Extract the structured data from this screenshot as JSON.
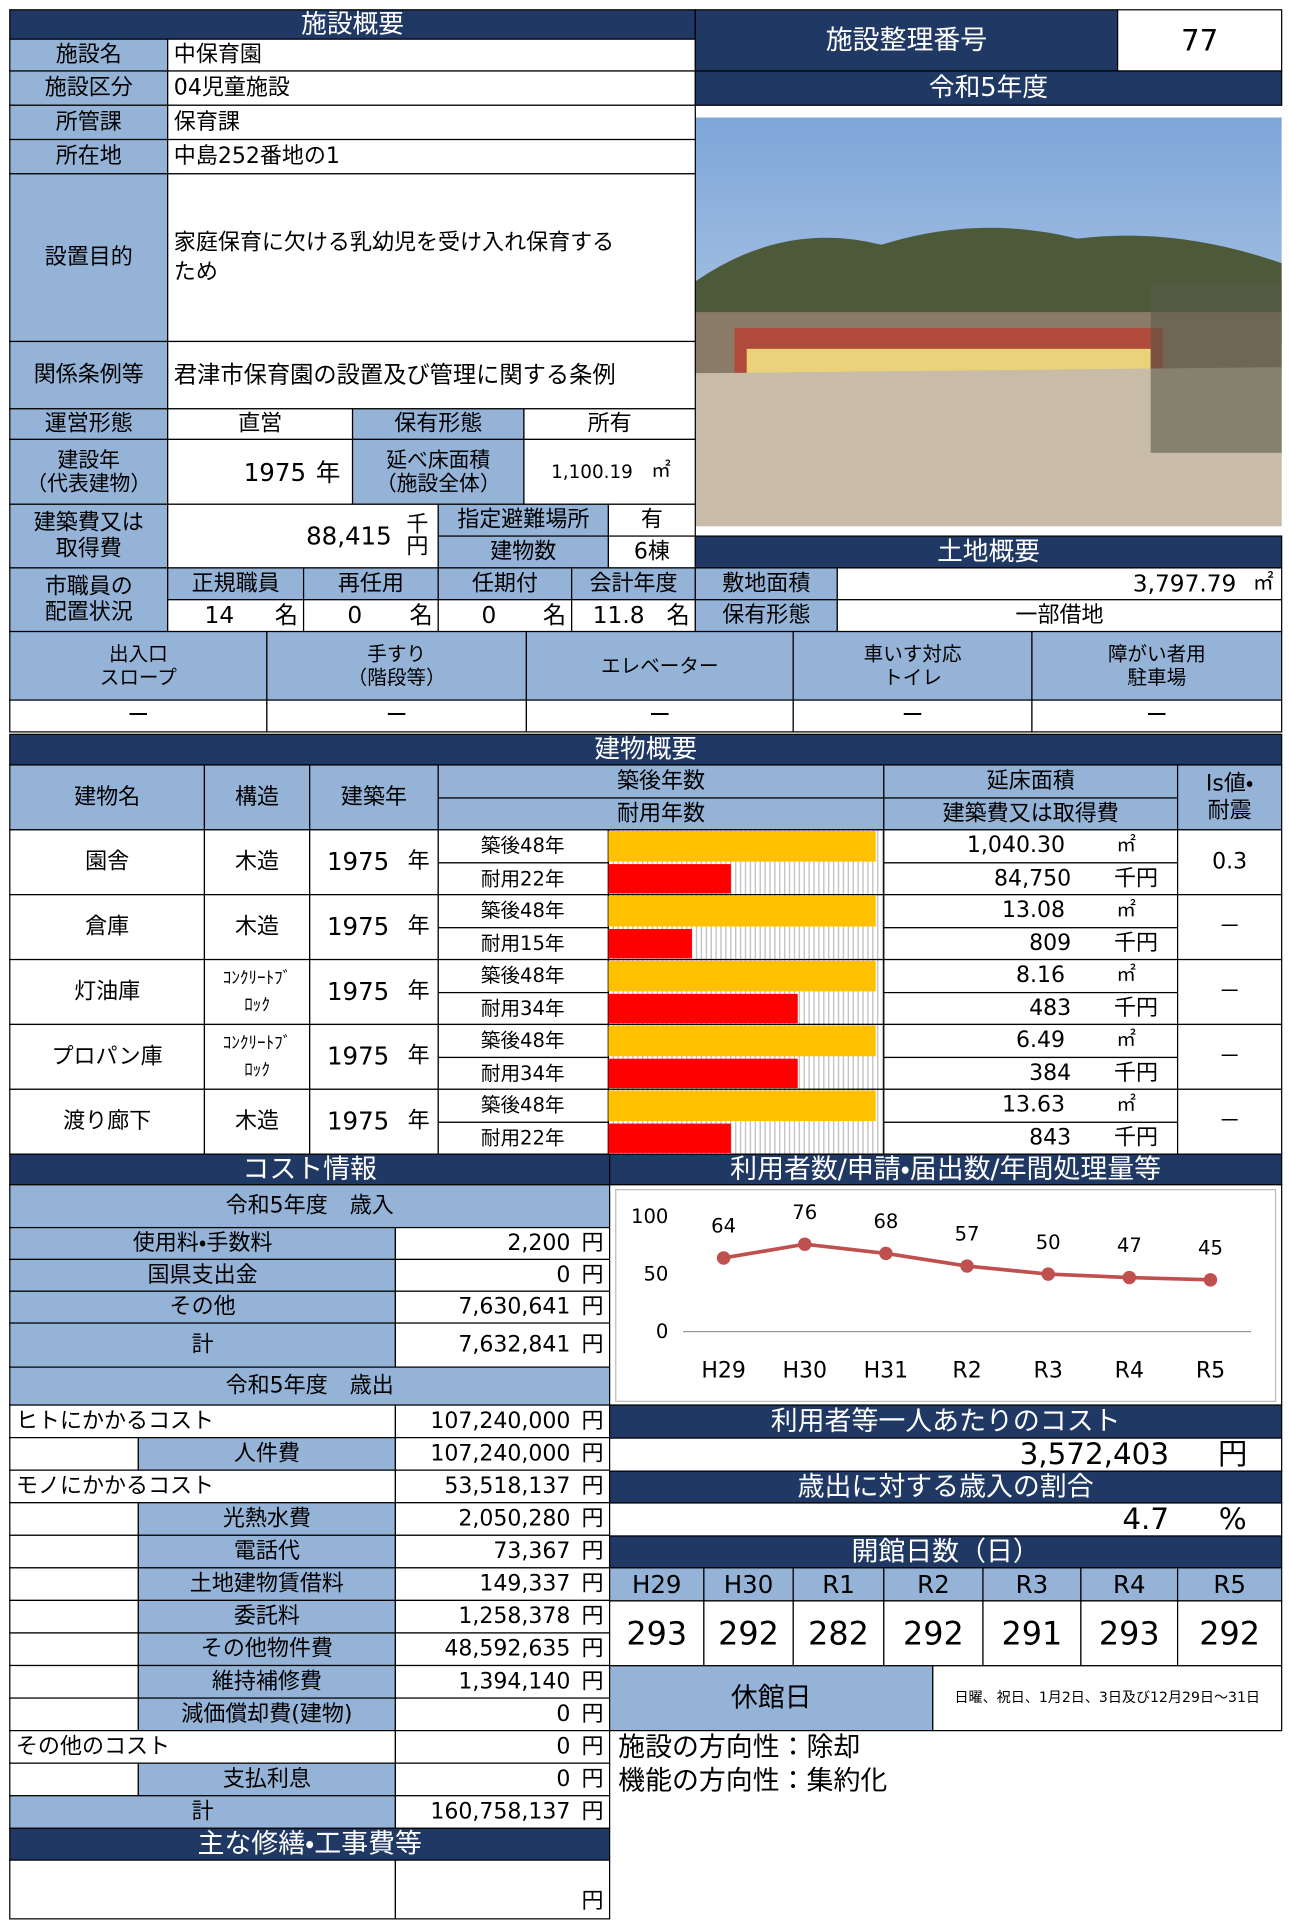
{
  "overview": {
    "title": "施設概要",
    "rows": [
      {
        "label": "施設名",
        "value": "中保育園"
      },
      {
        "label": "施設区分",
        "value": "04児童施設"
      },
      {
        "label": "所管課",
        "value": "保育課"
      },
      {
        "label": "所在地",
        "value": "中島252番地の1"
      },
      {
        "label": "設置目的",
        "value": [
          "家庭保育に欠ける乳幼児を受け入れ保育する",
          "ため"
        ]
      },
      {
        "label": "関係条例等",
        "value": "君津市保育園の設置及び管理に関する条例"
      }
    ],
    "operation": {
      "label": "運営形態",
      "value": "直営"
    },
    "ownership": {
      "label": "保有形態",
      "value": "所有"
    },
    "built": {
      "label": [
        "建設年",
        "（代表建物）"
      ],
      "value": "1975",
      "unit": "年"
    },
    "floor_area": {
      "label": [
        "延べ床面積",
        "（施設全体）"
      ],
      "value": "1,100.19",
      "unit": "㎡"
    },
    "cost": {
      "label": [
        "建築費又は",
        "取得費"
      ],
      "value": "88,415",
      "unit": [
        "千",
        "円"
      ]
    },
    "shelter": {
      "label": "指定避難場所",
      "value": "有"
    },
    "buildings_count": {
      "label": "建物数",
      "value": "6棟"
    },
    "staff": {
      "label": [
        "市職員の",
        "配置状況"
      ],
      "unit": "名",
      "items": [
        {
          "label": "正規職員",
          "value": "14"
        },
        {
          "label": "再任用",
          "value": "0"
        },
        {
          "label": "任期付",
          "value": "0"
        },
        {
          "label": "会計年度",
          "value": "11.8"
        }
      ]
    }
  },
  "facility_number": {
    "label": "施設整理番号",
    "value": "77"
  },
  "fiscal_year": "令和5年度",
  "land": {
    "title": "土地概要",
    "area": {
      "label": "敷地面積",
      "value": "3,797.79",
      "unit": "㎡"
    },
    "ownership": {
      "label": "保有形態",
      "value": "一部借地"
    }
  },
  "barrier_free": [
    {
      "label": [
        "出入口",
        "スロープ"
      ],
      "value": "ー"
    },
    {
      "label": [
        "手すり",
        "（階段等）"
      ],
      "value": "ー"
    },
    {
      "label": [
        "エレベーター"
      ],
      "value": "ー"
    },
    {
      "label": [
        "車いす対応",
        "トイレ"
      ],
      "value": "ー"
    },
    {
      "label": [
        "障がい者用",
        "駐車場"
      ],
      "value": "ー"
    }
  ],
  "buildings": {
    "title": "建物概要",
    "headers": {
      "name": "建物名",
      "structure": "構造",
      "year": "建築年",
      "age": "築後年数",
      "life": "耐用年数",
      "area": "延床面積",
      "cost": "建築費又は取得費",
      "is": [
        "Is値・",
        "耐震"
      ]
    },
    "year_unit": "年",
    "area_unit": "㎡",
    "cost_unit": "千円",
    "rows": [
      {
        "name": "園舎",
        "structure": [
          "木造"
        ],
        "year": "1975",
        "age": {
          "value": 48,
          "label": "築後48年"
        },
        "life": {
          "value": 22,
          "label": "耐用22年"
        },
        "area": "1,040.30",
        "cost": "84,750",
        "is": "0.3"
      },
      {
        "name": "倉庫",
        "structure": [
          "木造"
        ],
        "year": "1975",
        "age": {
          "value": 48,
          "label": "築後48年"
        },
        "life": {
          "value": 15,
          "label": "耐用15年"
        },
        "area": "13.08",
        "cost": "809",
        "is": "－"
      },
      {
        "name": "灯油庫",
        "structure": [
          "ｺﾝｸﾘｰﾄﾌﾞ",
          "ﾛｯｸ"
        ],
        "year": "1975",
        "age": {
          "value": 48,
          "label": "築後48年"
        },
        "life": {
          "value": 34,
          "label": "耐用34年"
        },
        "area": "8.16",
        "cost": "483",
        "is": "－"
      },
      {
        "name": "プロパン庫",
        "structure": [
          "ｺﾝｸﾘｰﾄﾌﾞ",
          "ﾛｯｸ"
        ],
        "year": "1975",
        "age": {
          "value": 48,
          "label": "築後48年"
        },
        "life": {
          "value": 34,
          "label": "耐用34年"
        },
        "area": "6.49",
        "cost": "384",
        "is": "－"
      },
      {
        "name": "渡り廊下",
        "structure": [
          "木造"
        ],
        "year": "1975",
        "age": {
          "value": 48,
          "label": "築後48年"
        },
        "life": {
          "value": 22,
          "label": "耐用22年"
        },
        "area": "13.63",
        "cost": "843",
        "is": "－"
      }
    ]
  },
  "cost_info": {
    "title": "コスト情報",
    "unit": "円",
    "revenue": {
      "title": "令和5年度　歳入",
      "rows": [
        {
          "label": "使用料・手数料",
          "value": "2,200"
        },
        {
          "label": "国県支出金",
          "value": "0"
        },
        {
          "label": "その他",
          "value": "7,630,641"
        }
      ],
      "total": {
        "label": "計",
        "value": "7,632,841"
      }
    },
    "expenditure": {
      "title": "令和5年度　歳出",
      "groups": [
        {
          "label": "ヒトにかかるコスト",
          "value": "107,240,000",
          "items": [
            {
              "label": "人件費",
              "value": "107,240,000"
            }
          ]
        },
        {
          "label": "モノにかかるコスト",
          "value": "53,518,137",
          "items": [
            {
              "label": "光熱水費",
              "value": "2,050,280"
            },
            {
              "label": "電話代",
              "value": "73,367"
            },
            {
              "label": "土地建物賃借料",
              "value": "149,337"
            },
            {
              "label": "委託料",
              "value": "1,258,378"
            },
            {
              "label": "その他物件費",
              "value": "48,592,635"
            },
            {
              "label": "維持補修費",
              "value": "1,394,140"
            },
            {
              "label": "減価償却費(建物)",
              "value": "0"
            }
          ]
        },
        {
          "label": "その他のコスト",
          "value": "0",
          "items": [
            {
              "label": "支払利息",
              "value": "0"
            }
          ]
        }
      ],
      "total": {
        "label": "計",
        "value": "160,758,137"
      }
    },
    "repairs_title": "主な修繕・工事費等"
  },
  "chart_data": {
    "type": "line",
    "title": "利用者数/申請・届出数/年間処理量等",
    "categories": [
      "H29",
      "H30",
      "H31",
      "R2",
      "R3",
      "R4",
      "R5"
    ],
    "values": [
      64,
      76,
      68,
      57,
      50,
      47,
      45
    ],
    "color": "#c0504d",
    "ylim": [
      0,
      100
    ],
    "yticks": [
      0,
      50,
      100
    ],
    "grid": false
  },
  "per_user_cost": {
    "title": "利用者等一人あたりのコスト",
    "value": "3,572,403",
    "unit": "円"
  },
  "revenue_ratio": {
    "title": "歳出に対する歳入の割合",
    "value": "4.7",
    "unit": "%"
  },
  "opening_days": {
    "title": "開館日数（日）",
    "years": [
      "H29",
      "H30",
      "R1",
      "R2",
      "R3",
      "R4",
      "R5"
    ],
    "days": [
      "293",
      "292",
      "282",
      "292",
      "291",
      "293",
      "292"
    ]
  },
  "closed_days": {
    "label": "休館日",
    "value": "日曜、祝日、1月2日、3日及び12月29日～31日"
  },
  "direction": {
    "facility": "施設の方向性：除却",
    "function": "機能の方向性：集約化"
  }
}
